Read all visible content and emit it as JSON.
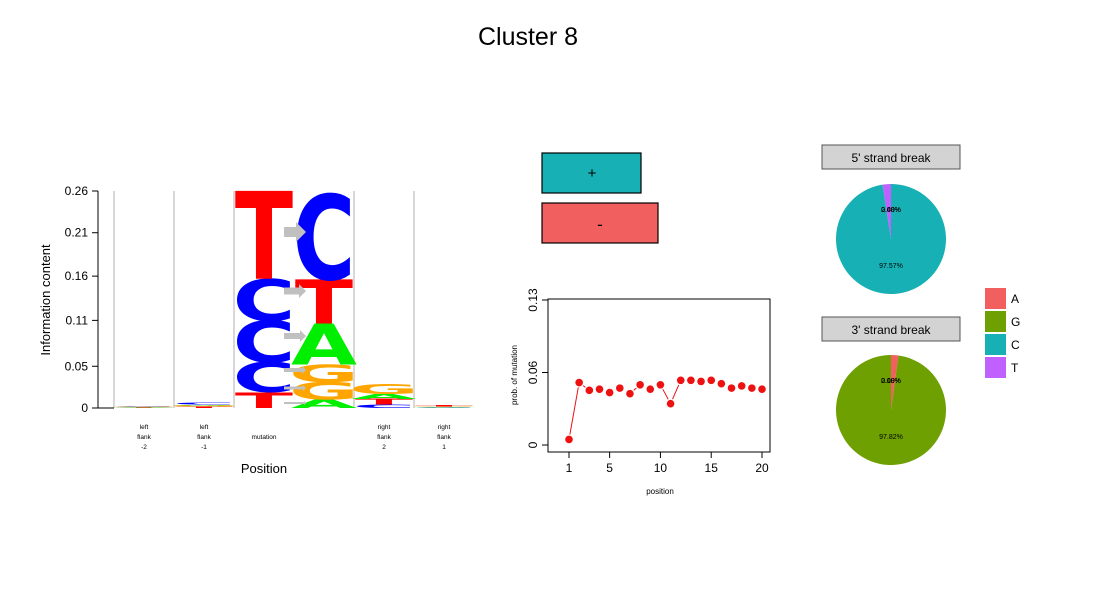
{
  "title": "Cluster 8",
  "colors": {
    "A": "#00ee00",
    "C": "#0000ff",
    "G": "#ffa500",
    "T": "#ff0000",
    "arrow": "#c0c0c0",
    "plus": "#17b1b5",
    "minus": "#f1605f",
    "pie_A": "#f1605f",
    "pie_G": "#6da000",
    "pie_C": "#17b1b5",
    "pie_T": "#c061ff",
    "point": "#ee1111",
    "header_fill": "#d3d3d3"
  },
  "logo": {
    "type": "sequence_logo",
    "ylabel": "Information content",
    "xlabel": "Position",
    "yticks": [
      "0",
      "0.05",
      "0.11",
      "0.16",
      "0.21",
      "0.26"
    ],
    "ylim": [
      0,
      0.26
    ],
    "columns": [
      {
        "label": [
          "left",
          "flank",
          "-2"
        ],
        "stack": [
          {
            "base": "T",
            "height": 0.0008
          },
          {
            "base": "A",
            "height": 0.0004
          },
          {
            "base": "G",
            "height": 0.0003
          },
          {
            "base": "C",
            "height": 0.0003
          }
        ]
      },
      {
        "label": [
          "left",
          "flank",
          "-1"
        ],
        "stack": [
          {
            "base": "T",
            "height": 0.0015
          },
          {
            "base": "G",
            "height": 0.0015
          },
          {
            "base": "A",
            "height": 0.001
          },
          {
            "base": "C",
            "height": 0.002
          }
        ]
      },
      {
        "label": [
          "",
          "mutation",
          ""
        ],
        "stack": [
          {
            "base": "T",
            "height": 0.019
          },
          {
            "base": "C",
            "height": 0.036
          },
          {
            "base": "C",
            "height": 0.05
          },
          {
            "base": "C",
            "height": 0.05
          },
          {
            "base": "T",
            "height": 0.105
          }
        ]
      },
      {
        "label": [
          "",
          "",
          ""
        ],
        "stack": [
          {
            "base": "A",
            "height": 0.01
          },
          {
            "base": "G",
            "height": 0.021
          },
          {
            "base": "G",
            "height": 0.021
          },
          {
            "base": "A",
            "height": 0.049
          },
          {
            "base": "T",
            "height": 0.053
          },
          {
            "base": "C",
            "height": 0.102
          }
        ]
      },
      {
        "label": [
          "right",
          "flank",
          "2"
        ],
        "stack": [
          {
            "base": "C",
            "height": 0.004
          },
          {
            "base": "T",
            "height": 0.007
          },
          {
            "base": "A",
            "height": 0.006
          },
          {
            "base": "G",
            "height": 0.012
          }
        ]
      },
      {
        "label": [
          "right",
          "flank",
          "1"
        ],
        "stack": [
          {
            "base": "A",
            "height": 0.0005
          },
          {
            "base": "C",
            "height": 0.0008
          },
          {
            "base": "G",
            "height": 0.0007
          },
          {
            "base": "T",
            "height": 0.0012
          }
        ]
      }
    ]
  },
  "strand": {
    "plus_label": "+",
    "minus_label": "-",
    "plus_value": 0.84,
    "minus_value": 0.98
  },
  "chart_data": {
    "type": "scatter",
    "xlabel": "position",
    "ylabel": "prob. of mutation",
    "xticks": [
      "1",
      "5",
      "10",
      "15",
      "20"
    ],
    "yticks": [
      "0",
      "0.06",
      "0.13"
    ],
    "xlim": [
      0,
      21
    ],
    "ylim": [
      0,
      0.13
    ],
    "x": [
      1,
      2,
      3,
      4,
      5,
      6,
      7,
      8,
      9,
      10,
      11,
      12,
      13,
      14,
      15,
      16,
      17,
      18,
      19,
      20
    ],
    "y": [
      0.005,
      0.056,
      0.049,
      0.05,
      0.047,
      0.051,
      0.046,
      0.054,
      0.05,
      0.054,
      0.037,
      0.058,
      0.058,
      0.057,
      0.058,
      0.055,
      0.051,
      0.053,
      0.051,
      0.05
    ]
  },
  "pies": [
    {
      "title": "5' strand break",
      "labels": [
        "0.00%",
        "0.00%",
        "97.57%",
        "2.43%"
      ],
      "overlap_text": "2.43%",
      "values": [
        0.0,
        0.0,
        97.57,
        2.43
      ]
    },
    {
      "title": "3' strand break",
      "labels": [
        "2.18%",
        "97.82%",
        "0.00%",
        "0.00%"
      ],
      "overlap_text": "2.18%",
      "values": [
        2.18,
        97.82,
        0.0,
        0.0
      ]
    }
  ],
  "legend": {
    "labels": [
      "A",
      "G",
      "C",
      "T"
    ]
  }
}
